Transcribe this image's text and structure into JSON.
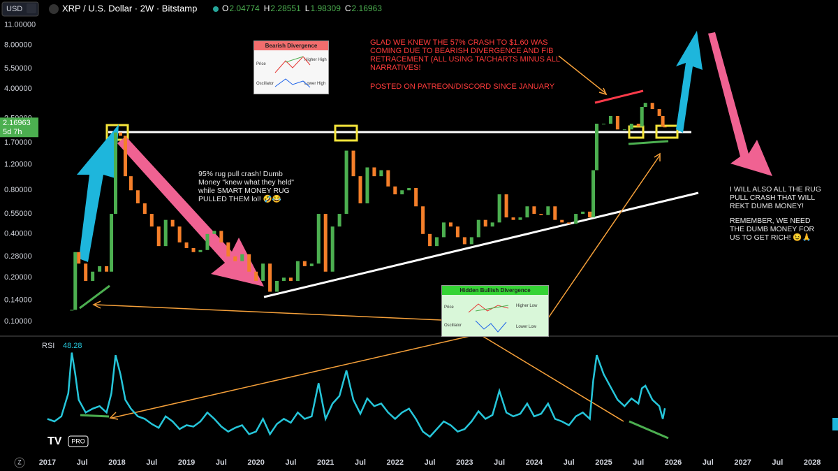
{
  "header": {
    "symbol": "USD",
    "title": "XRP / U.S. Dollar · 2W · Bitstamp",
    "ohlc": [
      [
        "O",
        "2.04774"
      ],
      [
        "H",
        "2.28551"
      ],
      [
        "L",
        "1.98309"
      ],
      [
        "C",
        "2.16963"
      ]
    ]
  },
  "chart_data": [
    {
      "type": "candlestick",
      "log_scale": true,
      "up_color": "#4caf50",
      "down_color": "#f57f2a",
      "countdown": "5d 7h",
      "ylim": [
        0.08,
        12.4
      ],
      "yticks": [
        {
          "value": 11,
          "label": "11.00000"
        },
        {
          "value": 8,
          "label": "8.00000"
        },
        {
          "value": 5.5,
          "label": "5.50000"
        },
        {
          "value": 4,
          "label": "4.00000"
        },
        {
          "value": 2.5,
          "label": "2.50000"
        },
        {
          "value": 1.7,
          "label": "1.70000"
        },
        {
          "value": 1.2,
          "label": "1.20000"
        },
        {
          "value": 0.8,
          "label": "0.80000"
        },
        {
          "value": 0.55,
          "label": "0.55000"
        },
        {
          "value": 0.4,
          "label": "0.40000"
        },
        {
          "value": 0.28,
          "label": "0.28000"
        },
        {
          "value": 0.2,
          "label": "0.20000"
        },
        {
          "value": 0.14,
          "label": "0.14000"
        },
        {
          "value": 0.1,
          "label": "0.10000"
        }
      ],
      "xlim": [
        2016.87,
        2028.37
      ],
      "xticks": [
        2017,
        {
          "value": 2017.5,
          "label": "Jul"
        },
        2018,
        {
          "value": 2018.5,
          "label": "Jul"
        },
        2019,
        {
          "value": 2019.5,
          "label": "Jul"
        },
        2020,
        {
          "value": 2020.5,
          "label": "Jul"
        },
        2021,
        {
          "value": 2021.5,
          "label": "Jul"
        },
        2022,
        {
          "value": 2022.5,
          "label": "Jul"
        },
        2023,
        {
          "value": 2023.5,
          "label": "Jul"
        },
        2024,
        {
          "value": 2024.5,
          "label": "Jul"
        },
        2025,
        {
          "value": 2025.5,
          "label": "Jul"
        },
        2026,
        {
          "value": 2026.5,
          "label": "Jul"
        },
        2027,
        {
          "value": 2027.5,
          "label": "Jul"
        },
        2028
      ],
      "x": [
        2017.35,
        2017.4,
        2017.45,
        2017.55,
        2017.65,
        2017.75,
        2017.85,
        2017.92,
        2017.98,
        2018.05,
        2018.12,
        2018.2,
        2018.3,
        2018.4,
        2018.5,
        2018.6,
        2018.7,
        2018.8,
        2018.9,
        2019.0,
        2019.1,
        2019.2,
        2019.3,
        2019.4,
        2019.5,
        2019.6,
        2019.7,
        2019.8,
        2019.9,
        2020.0,
        2020.1,
        2020.2,
        2020.3,
        2020.4,
        2020.5,
        2020.6,
        2020.7,
        2020.8,
        2020.9,
        2021.0,
        2021.1,
        2021.2,
        2021.3,
        2021.4,
        2021.5,
        2021.6,
        2021.7,
        2021.8,
        2021.9,
        2022.0,
        2022.1,
        2022.2,
        2022.3,
        2022.4,
        2022.5,
        2022.6,
        2022.7,
        2022.8,
        2022.9,
        2023.0,
        2023.1,
        2023.2,
        2023.3,
        2023.4,
        2023.5,
        2023.6,
        2023.7,
        2023.8,
        2023.9,
        2024.0,
        2024.1,
        2024.2,
        2024.3,
        2024.4,
        2024.5,
        2024.6,
        2024.7,
        2024.8,
        2024.85,
        2024.9,
        2025.0,
        2025.1,
        2025.2,
        2025.3,
        2025.4,
        2025.5,
        2025.55,
        2025.6,
        2025.7,
        2025.8,
        2025.85,
        2025.88
      ],
      "values": [
        0.12,
        0.3,
        0.25,
        0.19,
        0.22,
        0.24,
        0.22,
        0.55,
        2.0,
        1.9,
        1.0,
        0.8,
        0.65,
        0.55,
        0.45,
        0.33,
        0.5,
        0.45,
        0.35,
        0.32,
        0.3,
        0.31,
        0.4,
        0.42,
        0.35,
        0.28,
        0.26,
        0.29,
        0.22,
        0.19,
        0.25,
        0.16,
        0.19,
        0.2,
        0.19,
        0.26,
        0.24,
        0.25,
        0.55,
        0.22,
        0.45,
        0.55,
        1.5,
        1.0,
        0.65,
        1.15,
        1.0,
        1.1,
        0.85,
        0.75,
        0.8,
        0.83,
        0.62,
        0.4,
        0.33,
        0.38,
        0.48,
        0.45,
        0.38,
        0.34,
        0.38,
        0.5,
        0.45,
        0.48,
        0.75,
        0.52,
        0.5,
        0.52,
        0.62,
        0.55,
        0.54,
        0.62,
        0.5,
        0.48,
        0.47,
        0.55,
        0.57,
        0.52,
        1.1,
        2.3,
        2.3,
        2.6,
        2.1,
        2.1,
        2.3,
        2.2,
        3.0,
        3.2,
        2.9,
        2.6,
        2.2,
        2.16963
      ]
    },
    {
      "type": "line",
      "title": "RSI",
      "color": "#26c6da",
      "ylim": [
        15,
        100
      ],
      "x": [
        2017.0,
        2017.1,
        2017.2,
        2017.3,
        2017.35,
        2017.4,
        2017.45,
        2017.55,
        2017.65,
        2017.75,
        2017.85,
        2017.92,
        2017.98,
        2018.05,
        2018.12,
        2018.2,
        2018.3,
        2018.4,
        2018.5,
        2018.6,
        2018.7,
        2018.8,
        2018.9,
        2019.0,
        2019.1,
        2019.2,
        2019.3,
        2019.4,
        2019.5,
        2019.6,
        2019.7,
        2019.8,
        2019.9,
        2020.0,
        2020.1,
        2020.2,
        2020.3,
        2020.4,
        2020.5,
        2020.6,
        2020.7,
        2020.8,
        2020.9,
        2021.0,
        2021.1,
        2021.2,
        2021.3,
        2021.4,
        2021.5,
        2021.6,
        2021.7,
        2021.8,
        2021.9,
        2022.0,
        2022.1,
        2022.2,
        2022.3,
        2022.4,
        2022.5,
        2022.6,
        2022.7,
        2022.8,
        2022.9,
        2023.0,
        2023.1,
        2023.2,
        2023.3,
        2023.4,
        2023.5,
        2023.6,
        2023.7,
        2023.8,
        2023.9,
        2024.0,
        2024.1,
        2024.2,
        2024.3,
        2024.4,
        2024.5,
        2024.6,
        2024.7,
        2024.8,
        2024.85,
        2024.9,
        2025.0,
        2025.1,
        2025.2,
        2025.3,
        2025.4,
        2025.5,
        2025.55,
        2025.6,
        2025.7,
        2025.8,
        2025.85,
        2025.88
      ],
      "values": [
        40,
        38,
        42,
        60,
        92,
        75,
        55,
        45,
        48,
        50,
        45,
        60,
        90,
        75,
        55,
        48,
        42,
        40,
        36,
        33,
        42,
        38,
        32,
        35,
        34,
        38,
        45,
        40,
        34,
        30,
        33,
        35,
        28,
        30,
        40,
        28,
        36,
        40,
        37,
        45,
        40,
        42,
        68,
        40,
        52,
        58,
        78,
        55,
        44,
        56,
        50,
        52,
        45,
        40,
        45,
        48,
        40,
        30,
        26,
        32,
        38,
        35,
        30,
        32,
        38,
        46,
        40,
        43,
        62,
        45,
        42,
        44,
        52,
        42,
        44,
        52,
        40,
        38,
        35,
        42,
        45,
        40,
        70,
        90,
        75,
        65,
        55,
        50,
        56,
        52,
        64,
        66,
        55,
        50,
        40,
        48.28
      ]
    }
  ],
  "annotations": {
    "bearish_note": "GLAD WE KNEW THE 57% CRASH TO $1.60 WAS COMING DUE TO BEARISH DIVERGENCE AND FIB RETRACEMENT (ALL USING TA/CHARTS MINUS ALL NARRATIVES!",
    "posted_note": "POSTED ON PATREON/DISCORD SINCE JANUARY",
    "rug_note": "95% rug pull crash! Dumb Money \"knew what they held\" while SMART MONEY RUG PULLED THEM lol! 🤣😂",
    "future_note": "I WILL ALSO ALL THE RUG PULL CRASH THAT WILL REKT DUMB MONEY!",
    "remember_note": "REMEMBER, WE NEED THE DUMB MONEY FOR US TO GET RICH! 😉🙏",
    "bearish_inset": {
      "title": "Bearish Divergence",
      "price": "Price",
      "oscillator": "Oscillator",
      "high1": "Higher High",
      "high2": "Lower High"
    },
    "bullish_inset": {
      "title": "Hidden Bullish Divergence",
      "price": "Price",
      "oscillator": "Oscillator",
      "low1": "Higher Low",
      "low2": "Lower Low"
    }
  },
  "footer": {
    "logo": "PRO",
    "timezone": "Z"
  }
}
